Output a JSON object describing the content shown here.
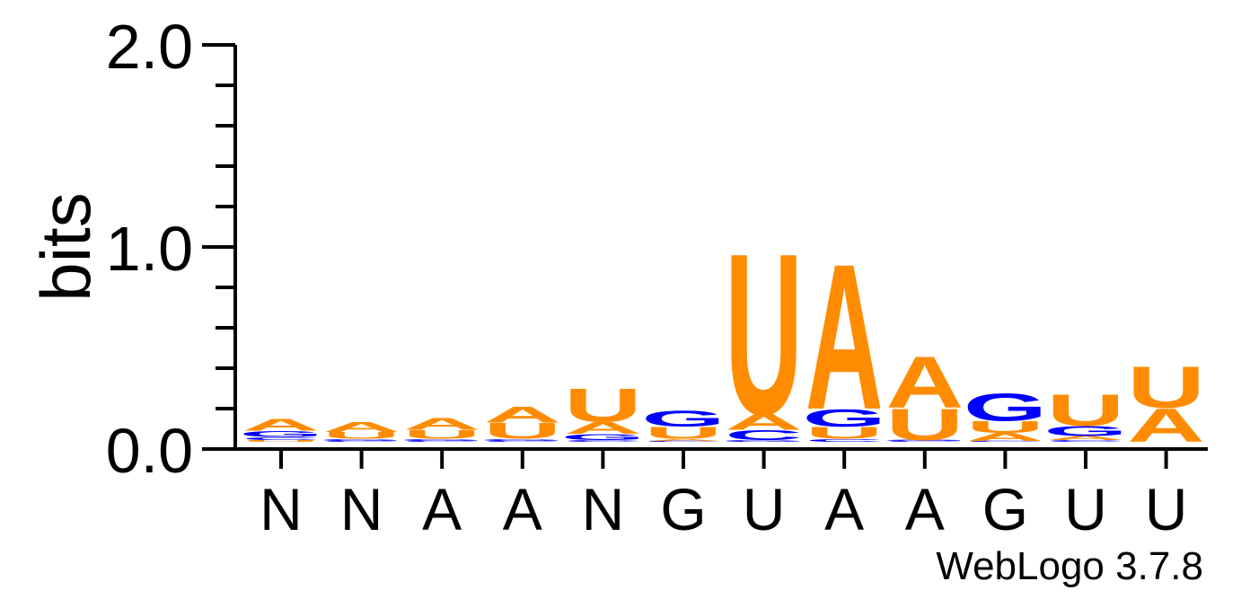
{
  "chart_data": {
    "type": "sequence_logo",
    "ylabel": "bits",
    "ylim": [
      0,
      2.0
    ],
    "yticks": [
      "0.0",
      "1.0",
      "2.0"
    ],
    "positions": [
      {
        "label": "N",
        "letters": [
          {
            "char": "U",
            "height": 0.01
          },
          {
            "char": "C",
            "height": 0.015
          },
          {
            "char": "G",
            "height": 0.03
          },
          {
            "char": "A",
            "height": 0.06
          }
        ]
      },
      {
        "label": "N",
        "letters": [
          {
            "char": "C",
            "height": 0.005
          },
          {
            "char": "G",
            "height": 0.01
          },
          {
            "char": "U",
            "height": 0.035
          },
          {
            "char": "A",
            "height": 0.05
          }
        ]
      },
      {
        "label": "A",
        "letters": [
          {
            "char": "C",
            "height": 0.005
          },
          {
            "char": "G",
            "height": 0.01
          },
          {
            "char": "U",
            "height": 0.045
          },
          {
            "char": "A",
            "height": 0.06
          }
        ]
      },
      {
        "label": "A",
        "letters": [
          {
            "char": "C",
            "height": 0.005
          },
          {
            "char": "G",
            "height": 0.01
          },
          {
            "char": "U",
            "height": 0.08
          },
          {
            "char": "A",
            "height": 0.08
          }
        ]
      },
      {
        "label": "N",
        "letters": [
          {
            "char": "C",
            "height": 0.01
          },
          {
            "char": "G",
            "height": 0.03
          },
          {
            "char": "A",
            "height": 0.06
          },
          {
            "char": "U",
            "height": 0.17
          }
        ]
      },
      {
        "label": "G",
        "letters": [
          {
            "char": "C",
            "height": 0.005
          },
          {
            "char": "A",
            "height": 0.01
          },
          {
            "char": "U",
            "height": 0.06
          },
          {
            "char": "G",
            "height": 0.08
          }
        ]
      },
      {
        "label": "U",
        "letters": [
          {
            "char": "G",
            "height": 0.01
          },
          {
            "char": "C",
            "height": 0.05
          },
          {
            "char": "A",
            "height": 0.08
          },
          {
            "char": "U",
            "height": 0.82
          }
        ]
      },
      {
        "label": "A",
        "letters": [
          {
            "char": "C",
            "height": 0.015
          },
          {
            "char": "U",
            "height": 0.06
          },
          {
            "char": "G",
            "height": 0.09
          },
          {
            "char": "A",
            "height": 0.74
          }
        ]
      },
      {
        "label": "A",
        "letters": [
          {
            "char": "C",
            "height": 0.005
          },
          {
            "char": "G",
            "height": 0.005
          },
          {
            "char": "U",
            "height": 0.16
          },
          {
            "char": "A",
            "height": 0.26
          }
        ]
      },
      {
        "label": "G",
        "letters": [
          {
            "char": "C",
            "height": 0.005
          },
          {
            "char": "A",
            "height": 0.04
          },
          {
            "char": "U",
            "height": 0.06
          },
          {
            "char": "G",
            "height": 0.14
          }
        ]
      },
      {
        "label": "U",
        "letters": [
          {
            "char": "C",
            "height": 0.01
          },
          {
            "char": "A",
            "height": 0.02
          },
          {
            "char": "G",
            "height": 0.05
          },
          {
            "char": "U",
            "height": 0.16
          }
        ]
      },
      {
        "label": "U",
        "letters": [
          {
            "char": "A",
            "height": 0.17
          },
          {
            "char": "U",
            "height": 0.21
          }
        ]
      }
    ],
    "colors": {
      "A": "#FF8C00",
      "U": "#FF8C00",
      "G": "#0000FF",
      "C": "#0000FF"
    },
    "credit": "WebLogo 3.7.8"
  }
}
